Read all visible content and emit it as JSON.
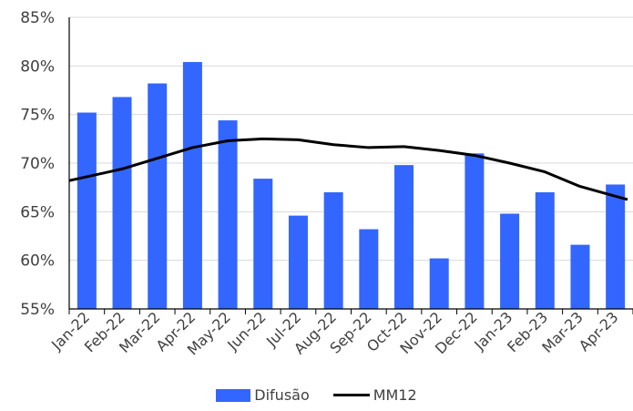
{
  "chart_data": {
    "type": "bar",
    "categories": [
      "Jan-22",
      "Feb-22",
      "Mar-22",
      "Apr-22",
      "May-22",
      "Jun-22",
      "Jul-22",
      "Aug-22",
      "Sep-22",
      "Oct-22",
      "Nov-22",
      "Dec-22",
      "Jan-23",
      "Feb-23",
      "Mar-23",
      "Apr-23"
    ],
    "series": [
      {
        "name": "Difusão",
        "type": "bar",
        "color": "#3366ff",
        "values": [
          75.2,
          76.8,
          78.2,
          80.4,
          74.4,
          68.4,
          64.6,
          67.0,
          63.2,
          69.8,
          60.2,
          71.0,
          64.8,
          67.0,
          61.6,
          67.8
        ]
      },
      {
        "name": "MM12",
        "type": "line",
        "color": "#000000",
        "values": [
          68.6,
          69.4,
          70.5,
          71.6,
          72.3,
          72.5,
          72.4,
          71.9,
          71.6,
          71.7,
          71.3,
          70.8,
          70.0,
          69.1,
          67.6,
          66.6
        ]
      }
    ],
    "y_ticks": [
      "55%",
      "60%",
      "65%",
      "70%",
      "75%",
      "80%",
      "85%"
    ],
    "ylim": [
      55,
      85
    ],
    "grid": true,
    "legend_position": "bottom",
    "title": "",
    "xlabel": "",
    "ylabel": ""
  }
}
